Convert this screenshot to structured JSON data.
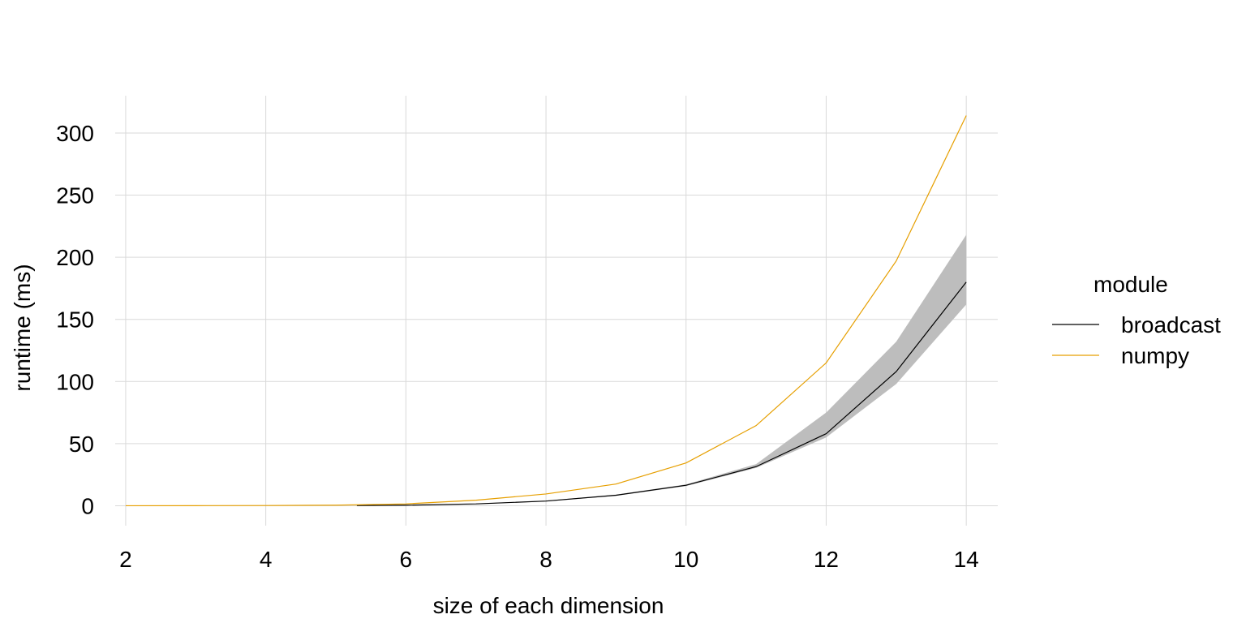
{
  "chart_data": {
    "type": "line",
    "title": "",
    "xlabel": "size of each dimension",
    "ylabel": "runtime (ms)",
    "xlim": [
      1.85,
      14.45
    ],
    "ylim": [
      -16,
      330
    ],
    "x_ticks": [
      2,
      4,
      6,
      8,
      10,
      12,
      14
    ],
    "y_ticks": [
      0,
      50,
      100,
      150,
      200,
      250,
      300
    ],
    "grid": true,
    "legend": {
      "title": "module",
      "position": "right"
    },
    "series": [
      {
        "name": "broadcast",
        "color": "#000000",
        "x": [
          5.3,
          6,
          7,
          8,
          9,
          10,
          11,
          12,
          13,
          14
        ],
        "values": [
          0.2,
          0.5,
          1.5,
          3.8,
          8.5,
          16.5,
          31.5,
          58,
          108,
          180
        ],
        "band_lower": [
          0.1,
          0.4,
          1.3,
          3.5,
          8.0,
          15.8,
          30.5,
          55,
          98,
          162
        ],
        "band_upper": [
          0.3,
          0.6,
          1.7,
          4.1,
          9.0,
          17.2,
          33.5,
          75,
          132,
          218
        ]
      },
      {
        "name": "numpy",
        "color": "#E69F00",
        "x": [
          2,
          3,
          4,
          5,
          6,
          7,
          8,
          9,
          10,
          11,
          12,
          13,
          14
        ],
        "values": [
          0.05,
          0.1,
          0.2,
          0.5,
          1.5,
          4.5,
          9.5,
          17.5,
          34.5,
          64.5,
          115,
          197,
          314
        ]
      }
    ]
  }
}
